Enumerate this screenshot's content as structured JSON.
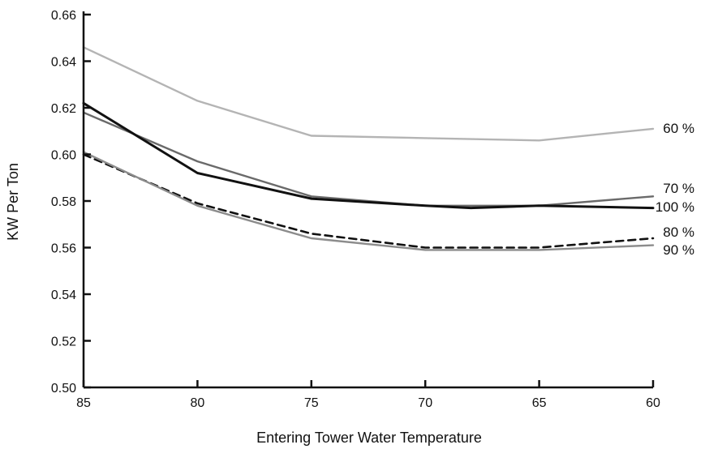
{
  "chart_data": {
    "type": "line",
    "title": "",
    "xlabel": "Entering Tower Water Temperature",
    "ylabel": "KW Per Ton",
    "x_ticks": [
      "85",
      "80",
      "75",
      "70",
      "65",
      "60"
    ],
    "y_ticks": [
      "0.50",
      "0.52",
      "0.54",
      "0.56",
      "0.58",
      "0.60",
      "0.62",
      "0.64",
      "0.66"
    ],
    "xlim": [
      85,
      60
    ],
    "ylim": [
      0.5,
      0.66
    ],
    "grid": false,
    "legend": "inline-right",
    "series": [
      {
        "name": "60 %",
        "color": "#b4b4b4",
        "dash": "solid",
        "x": [
          85,
          80,
          75,
          70,
          65,
          60
        ],
        "y": [
          0.646,
          0.623,
          0.608,
          0.607,
          0.606,
          0.611
        ]
      },
      {
        "name": "70 %",
        "color": "#6a6a6a",
        "dash": "solid",
        "x": [
          85,
          80,
          75,
          70,
          65,
          60
        ],
        "y": [
          0.618,
          0.597,
          0.582,
          0.578,
          0.578,
          0.582
        ]
      },
      {
        "name": "100 %",
        "color": "#111111",
        "dash": "solid",
        "x": [
          85,
          80,
          75,
          70,
          68,
          65,
          60
        ],
        "y": [
          0.622,
          0.592,
          0.581,
          0.578,
          0.577,
          0.578,
          0.577
        ]
      },
      {
        "name": "80 %",
        "color": "#111111",
        "dash": "dashed",
        "x": [
          85,
          80,
          75,
          70,
          65,
          60
        ],
        "y": [
          0.6,
          0.579,
          0.566,
          0.56,
          0.56,
          0.564
        ]
      },
      {
        "name": "90 %",
        "color": "#8c8c8c",
        "dash": "solid",
        "x": [
          85,
          80,
          75,
          70,
          65,
          60
        ],
        "y": [
          0.601,
          0.578,
          0.564,
          0.559,
          0.559,
          0.561
        ]
      }
    ]
  }
}
